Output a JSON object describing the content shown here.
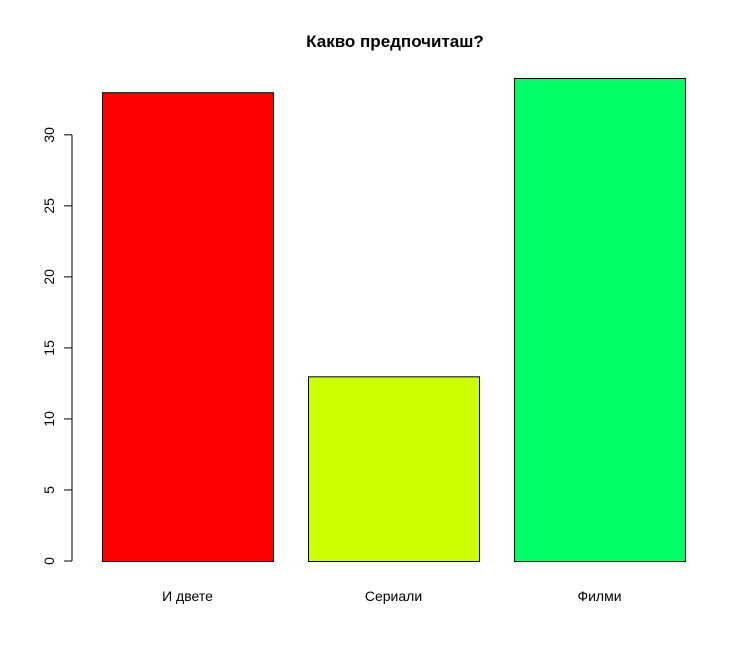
{
  "chart_data": {
    "type": "bar",
    "title": "Какво предпочиташ?",
    "xlabel": "",
    "ylabel": "",
    "categories": [
      "И двете",
      "Сериали",
      "Филми"
    ],
    "values": [
      33,
      13,
      34
    ],
    "colors": [
      "#FF0000",
      "#CCFF00",
      "#00FF66"
    ],
    "bar_border_color": "#000000",
    "ylim": [
      0,
      34
    ],
    "yticks": [
      0,
      5,
      10,
      15,
      20,
      25,
      30
    ],
    "grid": false,
    "legend": "none"
  }
}
